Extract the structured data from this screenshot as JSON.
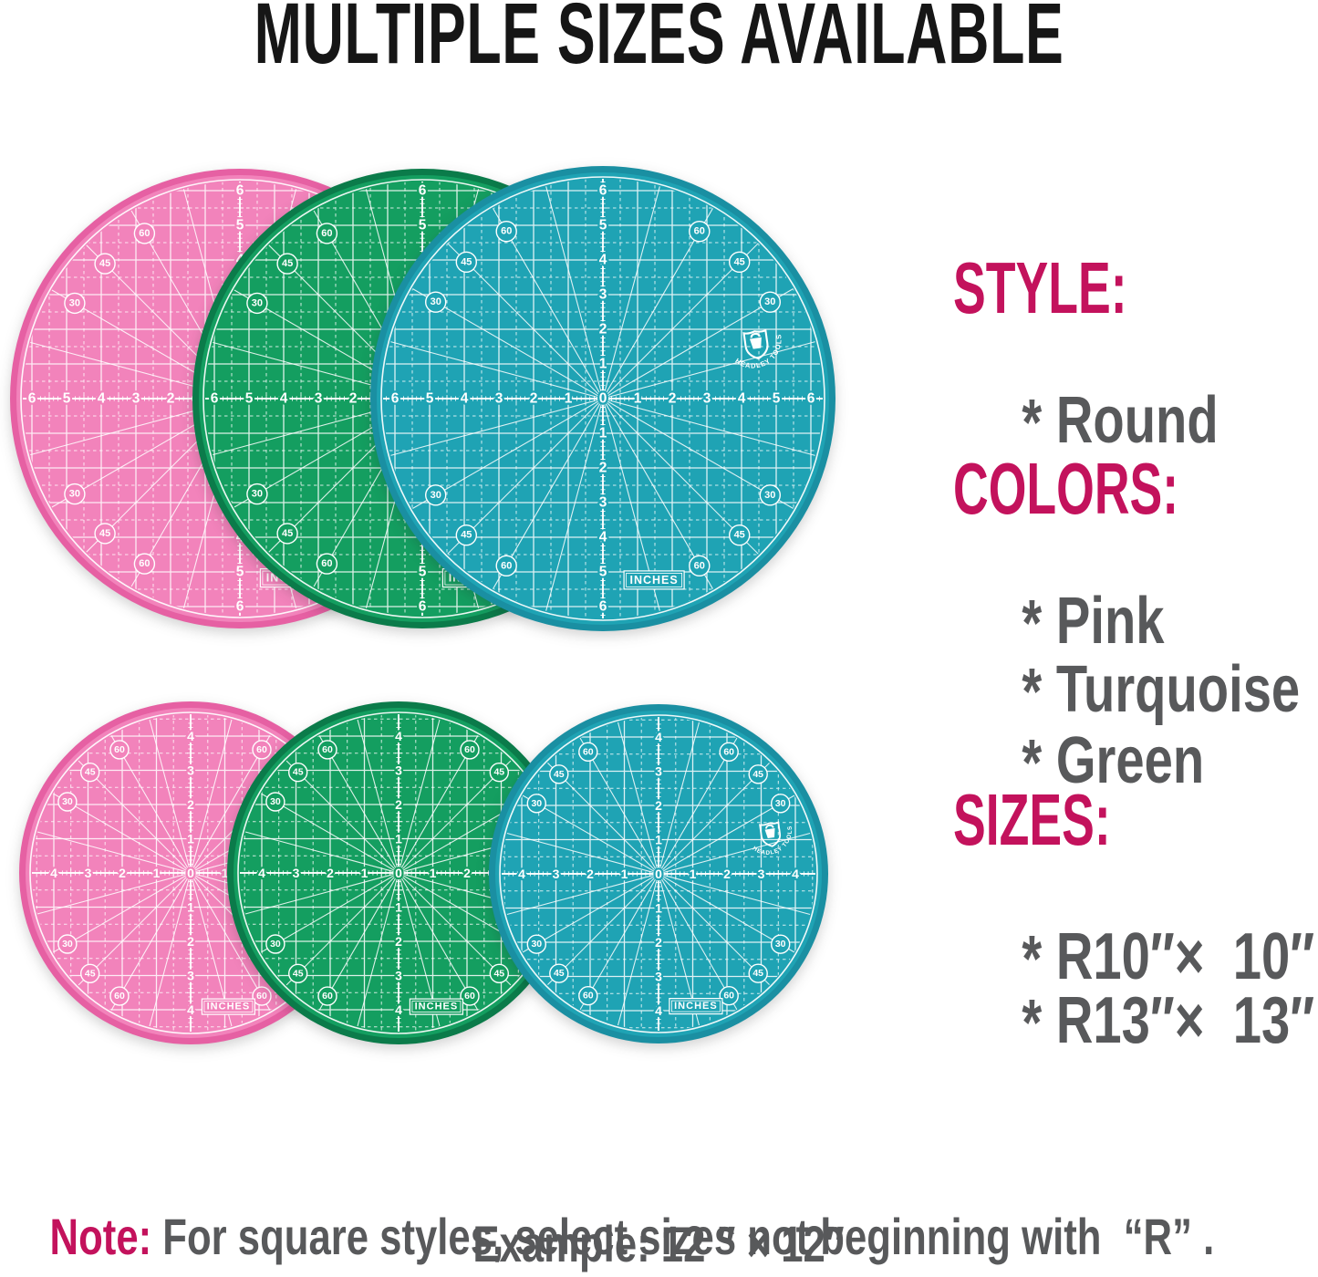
{
  "title": "MULTIPLE SIZES AVAILABLE",
  "sections": {
    "style": {
      "heading": "STYLE:",
      "items": [
        {
          "bullet": "*",
          "label": "Round"
        }
      ]
    },
    "colors": {
      "heading": "COLORS:",
      "items": [
        {
          "bullet": "*",
          "label": "Pink"
        },
        {
          "bullet": "*",
          "label": "Turquoise"
        },
        {
          "bullet": "*",
          "label": "Green"
        }
      ]
    },
    "sizes": {
      "heading": "SIZES:",
      "items": [
        {
          "bullet": "*",
          "label": "R10″×  10″"
        },
        {
          "bullet": "*",
          "label": "R13″×  13″"
        }
      ]
    }
  },
  "note": {
    "label": "Note:",
    "text": " For square styles, select sizes not beginning with  “R” .",
    "example": "Example: 12 ″ × 12″"
  },
  "theme": {
    "accent": "#C3125C",
    "text_gray": "#58595B",
    "title_color": "#161616",
    "background": "#FFFFFF"
  },
  "mats": {
    "brand": "HEADLEY TOOLS",
    "brand_icon": "shield-h-logo-icon",
    "inches_label": "INCHES",
    "angle_labels": [
      "30",
      "45",
      "60"
    ],
    "rows": [
      {
        "axis_max": 6
      },
      {
        "axis_max": 4
      }
    ],
    "variants": [
      {
        "name": "pink",
        "fill": "#F283BB",
        "ring": "#E660A3"
      },
      {
        "name": "green",
        "fill": "#149E60",
        "ring": "#0B7B4A"
      },
      {
        "name": "turquoise",
        "fill": "#1FA3B4",
        "ring": "#1A8FA2"
      }
    ]
  }
}
